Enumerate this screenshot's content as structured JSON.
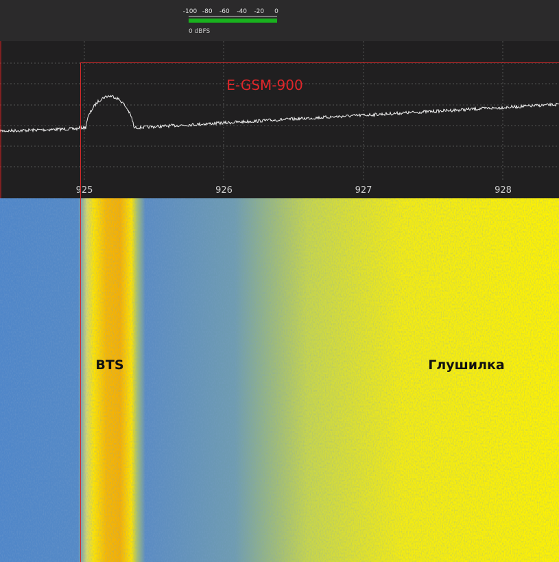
{
  "meter": {
    "ticks": [
      "-100",
      "-80",
      "-60",
      "-40",
      "-20",
      "0"
    ],
    "unit": "0 dBFS"
  },
  "spectrum": {
    "band_label": "E-GSM-900",
    "frequency_labels": [
      "925",
      "926",
      "927",
      "928"
    ]
  },
  "waterfall": {
    "labels": [
      "BTS",
      "Глушилка"
    ]
  }
}
